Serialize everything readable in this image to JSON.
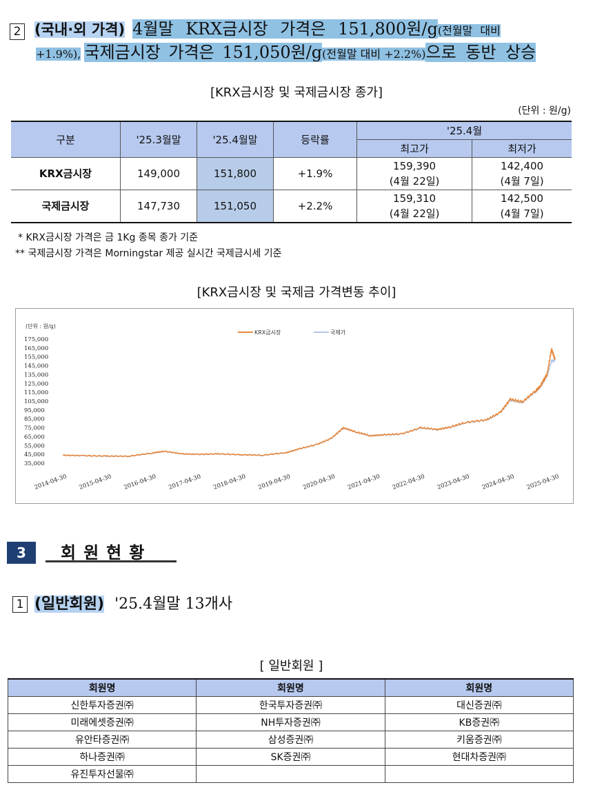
{
  "section2": {
    "item_number": "2",
    "heading": "(국내·외 가격)",
    "line1_text": "4월말 KRX금시장 가격은 151,800원/g",
    "line1_small": "(전월말 대비",
    "line2_small_a": "+1.9%),",
    "line2_text": "국제금시장 가격은 151,050원/g",
    "line2_small_b": "(전월말 대비 +2.2%)",
    "line2_tail": "으로 동반 상승"
  },
  "price_table": {
    "caption": "[KRX금시장 및 국제금시장 종가]",
    "unit": "(단위 : 원/g)",
    "headers": {
      "category": "구분",
      "prev_month": "'25.3월말",
      "this_month": "'25.4월말",
      "change": "등락률",
      "period": "'25.4월",
      "high": "최고가",
      "low": "최저가"
    },
    "rows": [
      {
        "name": "KRX금시장",
        "prev": "149,000",
        "curr": "151,800",
        "change": "+1.9%",
        "high": "159,390",
        "high_date": "(4월 22일)",
        "low": "142,400",
        "low_date": "(4월 7일)"
      },
      {
        "name": "국제금시장",
        "prev": "147,730",
        "curr": "151,050",
        "change": "+2.2%",
        "high": "159,310",
        "high_date": "(4월 22일)",
        "low": "142,500",
        "low_date": "(4월 7일)"
      }
    ],
    "note1": "*  KRX금시장 가격은 금 1Kg 종목 종가 기준",
    "note2": "**  국제금시장 가격은 Morningstar 제공 실시간 국제금시세 기준"
  },
  "chart_caption": "[KRX금시장 및 국제금 가격변동 추이]",
  "chart_data": {
    "type": "line",
    "title": "",
    "unit_label": "(단위 : 원/g)",
    "ylim": [
      35000,
      175000
    ],
    "y_ticks": [
      "175,000",
      "165,000",
      "155,000",
      "145,000",
      "135,000",
      "125,000",
      "115,000",
      "105,000",
      "95,000",
      "85,000",
      "75,000",
      "65,000",
      "55,000",
      "45,000",
      "35,000"
    ],
    "x_ticks": [
      "2014-04-30",
      "2015-04-30",
      "2016-04-30",
      "2017-04-30",
      "2018-04-30",
      "2019-04-30",
      "2020-04-30",
      "2021-04-30",
      "2022-04-30",
      "2023-04-30",
      "2024-04-30",
      "2025-04-30"
    ],
    "legend_position": "top-center",
    "series": [
      {
        "name": "KRX금시장",
        "color": "#e8873a",
        "x": [
          2014.33,
          2014.8,
          2015.33,
          2015.8,
          2016.33,
          2016.6,
          2017.0,
          2017.33,
          2017.8,
          2018.33,
          2018.8,
          2019.33,
          2019.6,
          2020.0,
          2020.33,
          2020.6,
          2020.9,
          2021.2,
          2021.5,
          2021.9,
          2022.33,
          2022.7,
          2023.0,
          2023.33,
          2023.8,
          2024.1,
          2024.33,
          2024.6,
          2024.9,
          2025.0,
          2025.15,
          2025.25,
          2025.33
        ],
        "values": [
          44000,
          43500,
          43000,
          42800,
          46500,
          48500,
          45500,
          45000,
          45500,
          44500,
          44000,
          47000,
          51000,
          56000,
          63000,
          75000,
          70000,
          66000,
          67000,
          68000,
          75000,
          73000,
          76000,
          81000,
          84000,
          92000,
          107000,
          104000,
          117000,
          122000,
          135000,
          163000,
          151800
        ]
      },
      {
        "name": "국제가",
        "color": "#b4c7e7",
        "x": [
          2014.33,
          2014.8,
          2015.33,
          2015.8,
          2016.33,
          2016.6,
          2017.0,
          2017.33,
          2017.8,
          2018.33,
          2018.8,
          2019.33,
          2019.6,
          2020.0,
          2020.33,
          2020.6,
          2020.9,
          2021.2,
          2021.5,
          2021.9,
          2022.33,
          2022.7,
          2023.0,
          2023.33,
          2023.8,
          2024.1,
          2024.33,
          2024.6,
          2024.9,
          2025.0,
          2025.15,
          2025.25,
          2025.33
        ],
        "values": [
          43800,
          43300,
          42800,
          42600,
          46200,
          48200,
          45300,
          44800,
          45300,
          44300,
          43800,
          46800,
          50800,
          55800,
          62800,
          74500,
          69800,
          65800,
          66800,
          67800,
          74700,
          72800,
          75700,
          80500,
          83700,
          91500,
          106000,
          103500,
          116000,
          121000,
          133000,
          150000,
          151050
        ]
      }
    ]
  },
  "section3": {
    "number": "3",
    "title": "회원현황",
    "item_number": "1",
    "item_heading": "(일반회원)",
    "item_text": "'25.4월말 13개사",
    "member_caption": "[ 일반회원 ]",
    "member_headers": [
      "회원명",
      "회원명",
      "회원명"
    ],
    "member_rows": [
      [
        "신한투자증권㈜",
        "한국투자증권㈜",
        "대신증권㈜"
      ],
      [
        "미래에셋증권㈜",
        "NH투자증권㈜",
        "KB증권㈜"
      ],
      [
        "유안타증권㈜",
        "삼성증권㈜",
        "키움증권㈜"
      ],
      [
        "하나증권㈜",
        "SK증권㈜",
        "현대차증권㈜"
      ],
      [
        "유진투자선물㈜",
        "",
        ""
      ]
    ]
  }
}
